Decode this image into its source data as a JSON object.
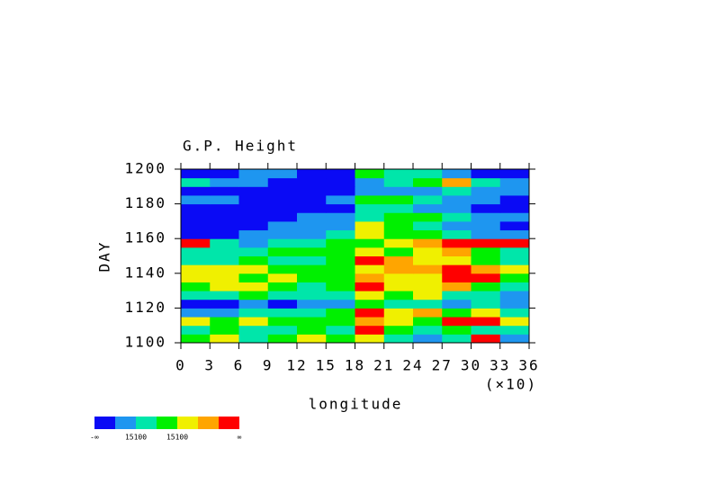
{
  "chart_data": {
    "type": "heatmap",
    "title": "G.P. Height",
    "xlabel": "longitude",
    "ylabel": "DAY",
    "x_scale_label": "(×10)",
    "xlim": [
      0,
      36
    ],
    "ylim": [
      1100,
      1200
    ],
    "xticks": [
      0,
      3,
      6,
      9,
      12,
      15,
      18,
      21,
      24,
      27,
      30,
      33,
      36
    ],
    "yticks": [
      1100,
      1120,
      1140,
      1160,
      1180,
      1200
    ],
    "colors": [
      "#0a0af5",
      "#1e96f0",
      "#00e6aa",
      "#00f000",
      "#f0f000",
      "#ffa500",
      "#ff0000"
    ],
    "colorbar_labels": [
      "-∞",
      "15100",
      "15100",
      "∞"
    ],
    "z": [
      [
        3,
        4,
        2,
        3,
        4,
        3,
        4,
        2,
        1,
        2,
        6,
        1
      ],
      [
        2,
        3,
        2,
        2,
        3,
        2,
        6,
        3,
        2,
        3,
        2,
        2
      ],
      [
        4,
        3,
        4,
        3,
        3,
        3,
        5,
        4,
        3,
        6,
        6,
        4
      ],
      [
        1,
        1,
        2,
        2,
        2,
        3,
        6,
        4,
        5,
        3,
        4,
        2
      ],
      [
        0,
        0,
        1,
        0,
        1,
        1,
        3,
        2,
        2,
        1,
        2,
        1
      ],
      [
        2,
        2,
        3,
        2,
        2,
        2,
        4,
        3,
        4,
        2,
        2,
        1
      ],
      [
        3,
        4,
        4,
        3,
        2,
        3,
        6,
        4,
        4,
        5,
        3,
        2
      ],
      [
        4,
        4,
        3,
        4,
        3,
        3,
        5,
        4,
        4,
        6,
        6,
        3
      ],
      [
        4,
        4,
        4,
        3,
        3,
        3,
        4,
        5,
        5,
        6,
        5,
        4
      ],
      [
        2,
        2,
        3,
        2,
        2,
        3,
        6,
        5,
        4,
        4,
        3,
        2
      ],
      [
        2,
        2,
        2,
        3,
        3,
        3,
        4,
        3,
        4,
        5,
        3,
        2
      ],
      [
        6,
        2,
        1,
        2,
        2,
        3,
        3,
        4,
        5,
        6,
        6,
        6
      ],
      [
        0,
        0,
        1,
        1,
        1,
        2,
        4,
        3,
        3,
        2,
        1,
        1
      ],
      [
        0,
        0,
        0,
        1,
        1,
        1,
        4,
        3,
        2,
        1,
        1,
        0
      ],
      [
        0,
        0,
        0,
        0,
        1,
        1,
        2,
        3,
        3,
        2,
        1,
        1
      ],
      [
        0,
        0,
        0,
        0,
        0,
        0,
        2,
        2,
        1,
        1,
        0,
        0
      ],
      [
        1,
        1,
        0,
        0,
        0,
        1,
        3,
        3,
        2,
        1,
        1,
        0
      ],
      [
        0,
        0,
        0,
        0,
        0,
        0,
        1,
        1,
        1,
        2,
        1,
        1
      ],
      [
        2,
        1,
        1,
        0,
        0,
        0,
        1,
        2,
        3,
        5,
        2,
        1
      ],
      [
        0,
        0,
        1,
        1,
        0,
        0,
        3,
        2,
        2,
        1,
        0,
        0
      ]
    ]
  }
}
